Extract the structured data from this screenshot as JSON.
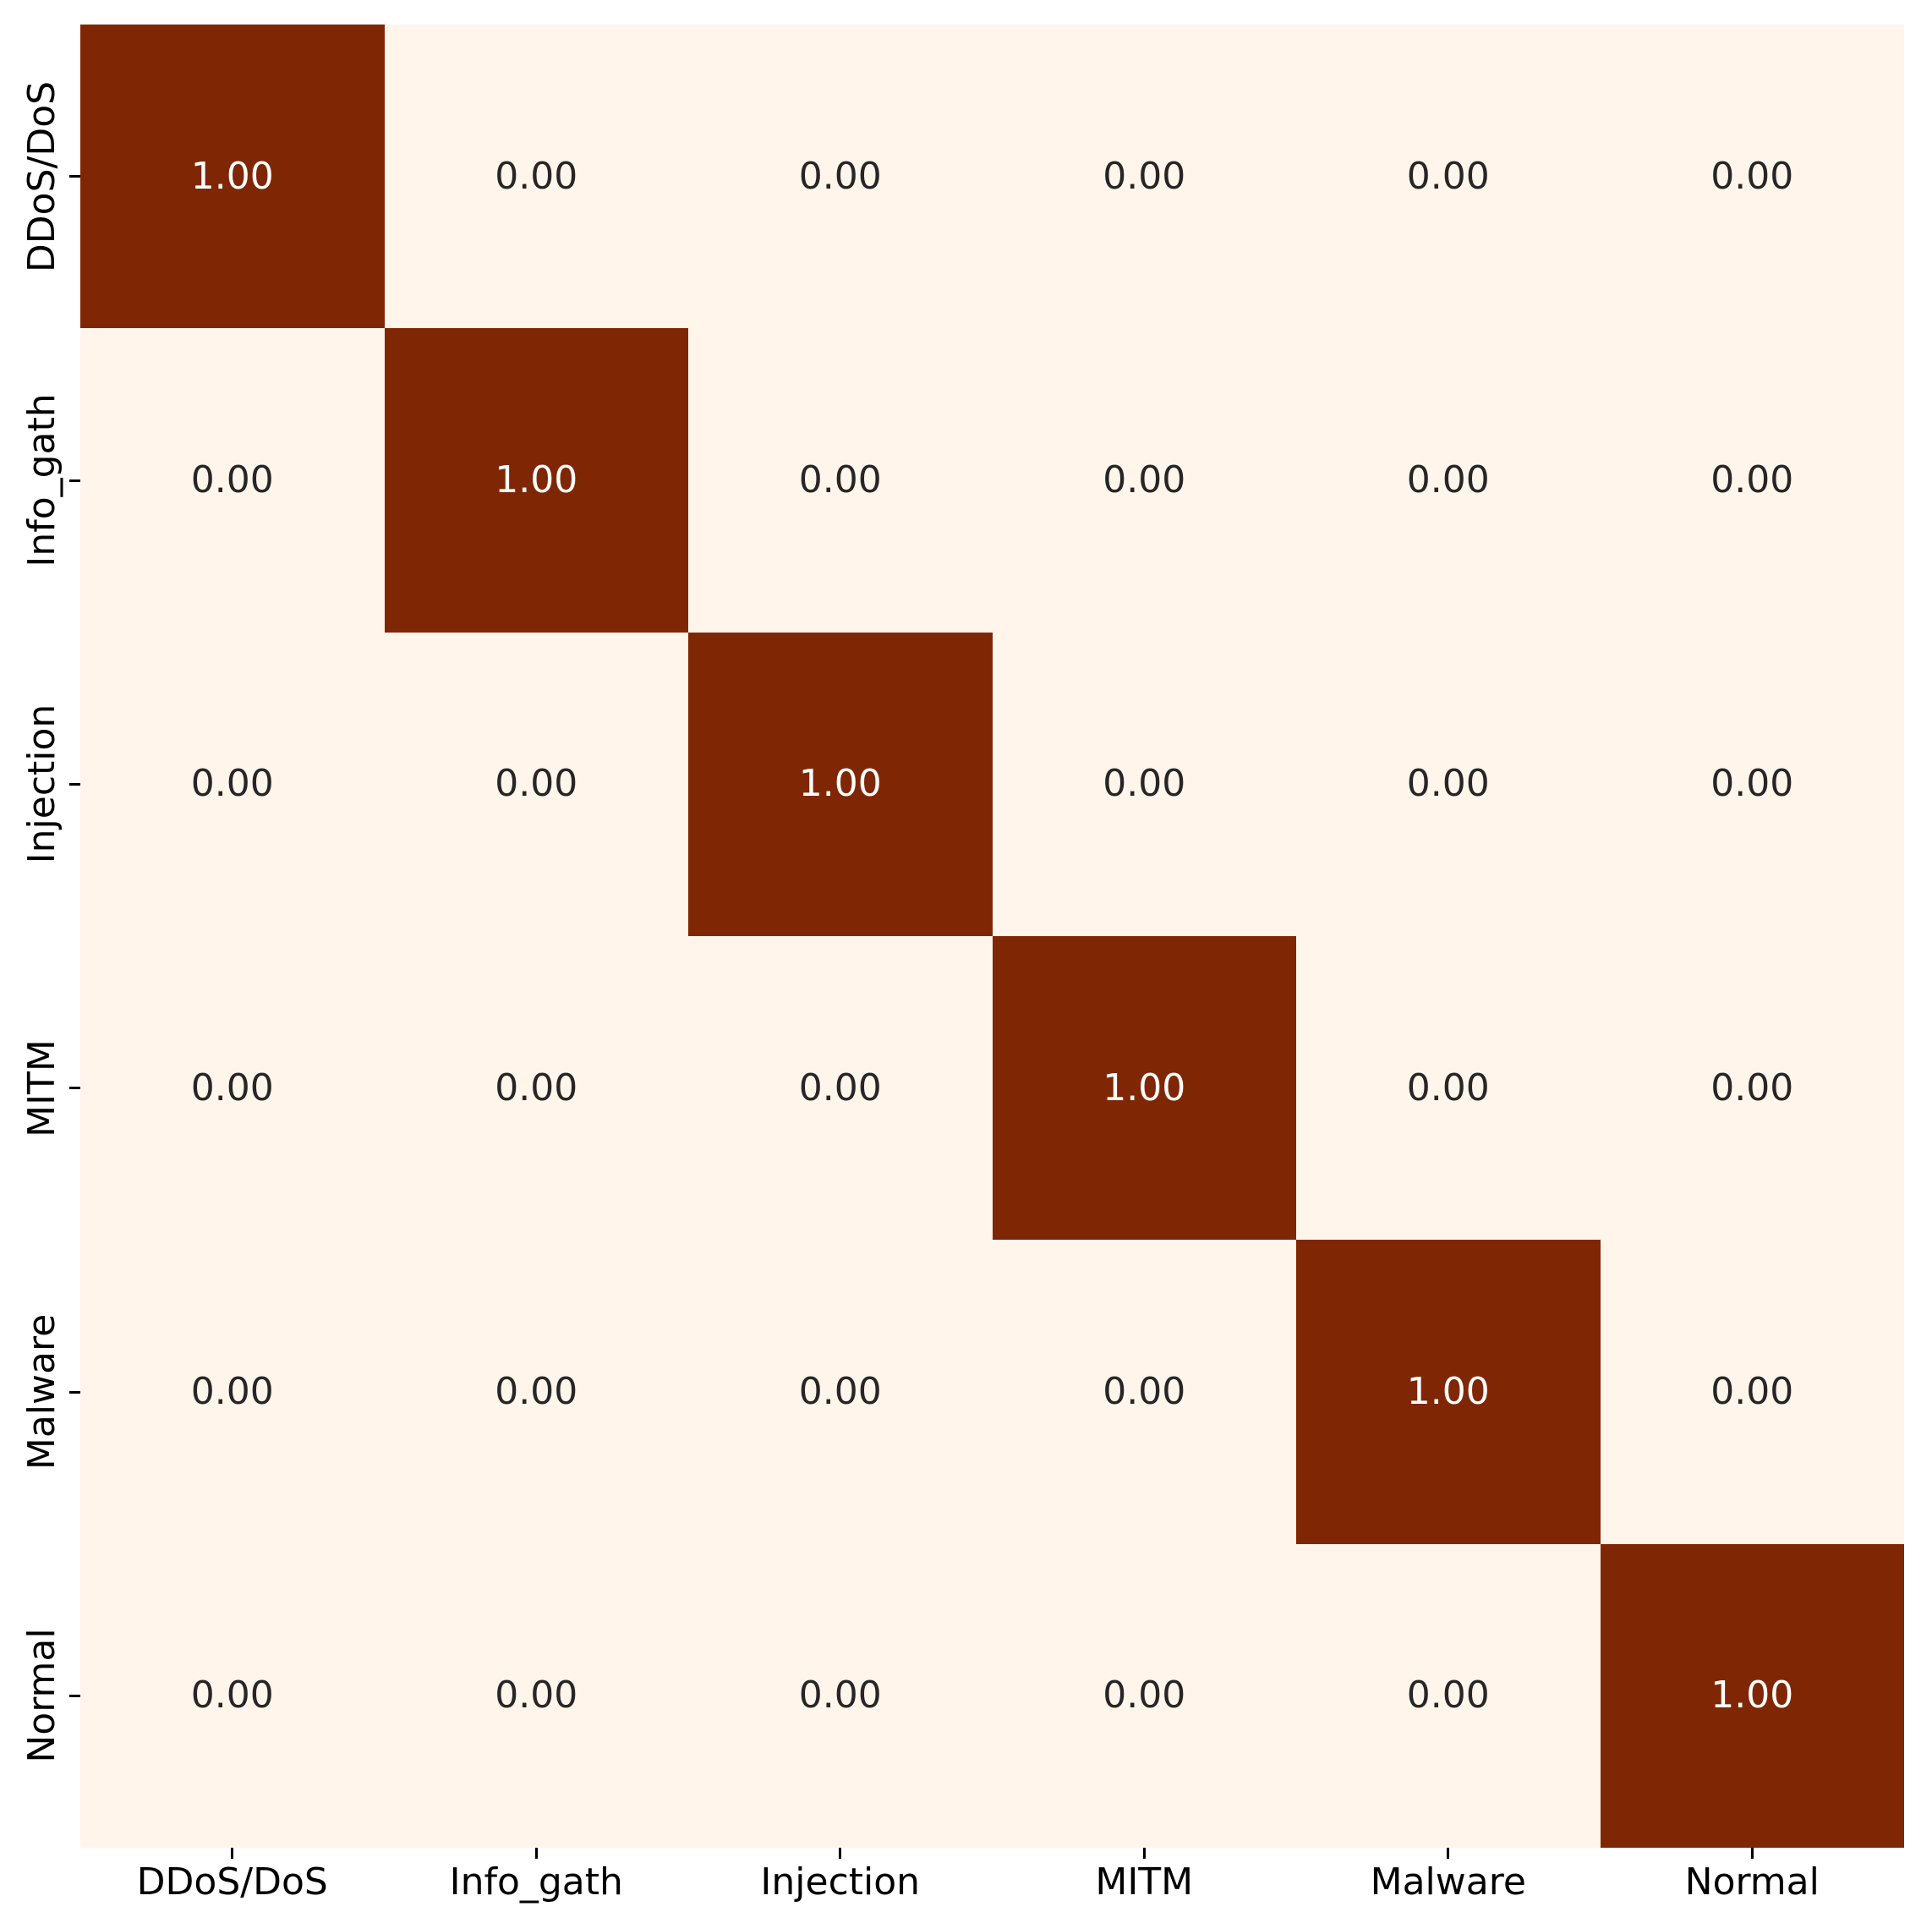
{
  "chart_data": {
    "type": "heatmap",
    "title": "",
    "xlabel": "",
    "ylabel": "",
    "x_labels": [
      "DDoS/DoS",
      "Info_gath",
      "Injection",
      "MITM",
      "Malware",
      "Normal"
    ],
    "y_labels": [
      "DDoS/DoS",
      "Info_gath",
      "Injection",
      "MITM",
      "Malware",
      "Normal"
    ],
    "matrix": [
      [
        1.0,
        0.0,
        0.0,
        0.0,
        0.0,
        0.0
      ],
      [
        0.0,
        1.0,
        0.0,
        0.0,
        0.0,
        0.0
      ],
      [
        0.0,
        0.0,
        1.0,
        0.0,
        0.0,
        0.0
      ],
      [
        0.0,
        0.0,
        0.0,
        1.0,
        0.0,
        0.0
      ],
      [
        0.0,
        0.0,
        0.0,
        0.0,
        1.0,
        0.0
      ],
      [
        0.0,
        0.0,
        0.0,
        0.0,
        0.0,
        1.0
      ]
    ],
    "annotations": [
      [
        "1.00",
        "0.00",
        "0.00",
        "0.00",
        "0.00",
        "0.00"
      ],
      [
        "0.00",
        "1.00",
        "0.00",
        "0.00",
        "0.00",
        "0.00"
      ],
      [
        "0.00",
        "0.00",
        "1.00",
        "0.00",
        "0.00",
        "0.00"
      ],
      [
        "0.00",
        "0.00",
        "0.00",
        "1.00",
        "0.00",
        "0.00"
      ],
      [
        "0.00",
        "0.00",
        "0.00",
        "0.00",
        "1.00",
        "0.00"
      ],
      [
        "0.00",
        "0.00",
        "0.00",
        "0.00",
        "0.00",
        "1.00"
      ]
    ],
    "value_range": [
      0,
      1
    ],
    "colormap": "Oranges",
    "grid": false,
    "legend": "none",
    "colors": {
      "cell_high": "#7f2704",
      "cell_low": "#fff5eb",
      "annot_on_high": "#ffffff",
      "annot_on_low": "#262626",
      "tick_mark": "#000000",
      "tick_label": "#000000",
      "figure_background": "#ffffff"
    }
  }
}
